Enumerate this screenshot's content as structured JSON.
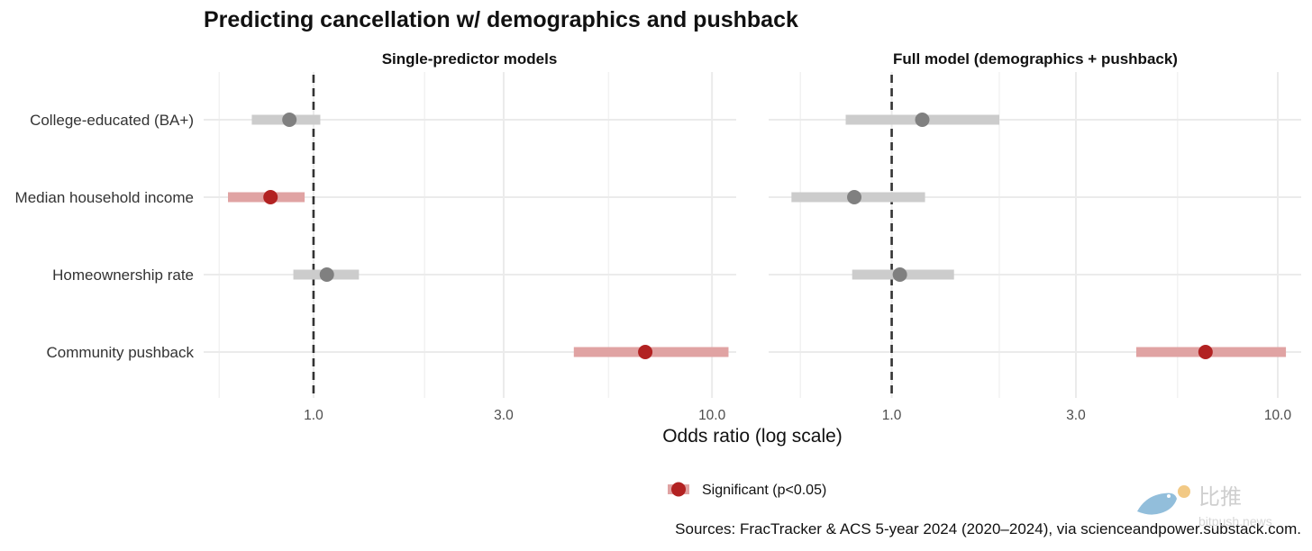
{
  "title": "Predicting cancellation w/ demographics and pushback",
  "chart_data": {
    "type": "scatter",
    "subtype": "forest-plot (point estimate with confidence interval)",
    "xlabel": "Odds ratio (log scale)",
    "x_scale": "log",
    "x_ticks": [
      1.0,
      3.0,
      10.0
    ],
    "x_tick_labels": [
      "1.0",
      "3.0",
      "10.0"
    ],
    "reference_line": 1.0,
    "categories": [
      "College-educated (BA+)",
      "Median household income",
      "Homeownership rate",
      "Community pushback"
    ],
    "panels": [
      {
        "title": "Single-predictor models",
        "xlim": [
          0.53,
          11.5
        ],
        "rows": [
          {
            "label": "College-educated (BA+)",
            "or": 0.87,
            "lo": 0.7,
            "hi": 1.04,
            "significant": false
          },
          {
            "label": "Median household income",
            "or": 0.78,
            "lo": 0.61,
            "hi": 0.95,
            "significant": true
          },
          {
            "label": "Homeownership rate",
            "or": 1.08,
            "lo": 0.89,
            "hi": 1.3,
            "significant": false
          },
          {
            "label": "Community pushback",
            "or": 6.8,
            "lo": 4.5,
            "hi": 11.0,
            "significant": true
          }
        ]
      },
      {
        "title": "Full model (demographics + pushback)",
        "xlim": [
          0.48,
          11.5
        ],
        "rows": [
          {
            "label": "College-educated (BA+)",
            "or": 1.2,
            "lo": 0.76,
            "hi": 1.9,
            "significant": false
          },
          {
            "label": "Median household income",
            "or": 0.8,
            "lo": 0.55,
            "hi": 1.22,
            "significant": false
          },
          {
            "label": "Homeownership rate",
            "or": 1.05,
            "lo": 0.79,
            "hi": 1.45,
            "significant": false
          },
          {
            "label": "Community pushback",
            "or": 6.5,
            "lo": 4.3,
            "hi": 10.5,
            "significant": true
          }
        ]
      }
    ],
    "legend": {
      "label": "Significant (p<0.05)",
      "position": "bottom"
    },
    "grid": true,
    "colors": {
      "significant": "#b22222",
      "significant_band": "#e0a3a3",
      "nonsignificant": "#808080",
      "nonsignificant_band": "#cccccc",
      "refline": "#333333",
      "grid": "#ebebeb"
    }
  },
  "source": "Sources: FracTracker & ACS 5-year 2024 (2020–2024), via scienceandpower.substack.com.",
  "watermark": {
    "text": "比推",
    "subtext": "bitpush.news"
  }
}
